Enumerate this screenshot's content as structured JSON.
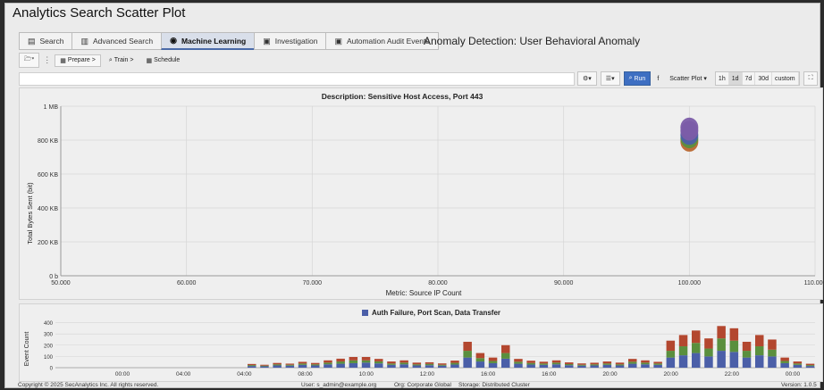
{
  "app": {
    "title": "Analytics Search Scatter Plot"
  },
  "tabs": [
    {
      "label": "Search",
      "icon": "bar-chart-icon",
      "glyph": "▤",
      "active": false
    },
    {
      "label": "Advanced Search",
      "icon": "document-icon",
      "glyph": "▥",
      "active": false
    },
    {
      "label": "Machine Learning",
      "icon": "eye-icon",
      "glyph": "◉",
      "active": true
    },
    {
      "label": "Investigation",
      "icon": "clipboard-icon",
      "glyph": "▣",
      "active": false
    },
    {
      "label": "Automation Audit Events",
      "icon": "gear-doc-icon",
      "glyph": "▣",
      "active": false
    }
  ],
  "header": {
    "anomaly_title": "Anomaly Detection: User Behavioral Anomaly"
  },
  "workflow": {
    "folder_glyph": "🗁▾",
    "sep_glyph": "⋮",
    "steps": [
      "Prepare >",
      "Train >",
      "Schedule"
    ]
  },
  "controls": {
    "settings_glyph": "⚙▾",
    "list_glyph": "☰▾",
    "run_label": "Run",
    "f_label": "f",
    "view_select": "Scatter Plot",
    "ranges": [
      "1h",
      "1d",
      "7d",
      "30d",
      "custom"
    ],
    "selected_range": "1d",
    "expand_glyph": "⛶"
  },
  "colors": {
    "series_blue": "#4b5fa8",
    "series_green": "#5a8f3e",
    "series_red": "#b3472f",
    "point_purple": "#7b5ca8",
    "point_orange": "#b8662e",
    "run_blue": "#3e6fc2"
  },
  "chart_data": [
    {
      "type": "scatter",
      "title": "Description: Sensitive Host Access, Port 443",
      "xlabel": "Metric: Source IP Count",
      "ylabel": "Total Bytes Sent (bit)",
      "xlim": [
        50000,
        110000
      ],
      "ylim": [
        0,
        1000000
      ],
      "x_ticks": [
        50000,
        60000,
        70000,
        80000,
        90000,
        100000,
        110000
      ],
      "x_tick_labels": [
        "50.000",
        "60.000",
        "70.000",
        "80.000",
        "90.000",
        "100.000",
        "110.000"
      ],
      "y_ticks": [
        0,
        200000,
        400000,
        600000,
        800000,
        1000000
      ],
      "y_tick_labels": [
        "0 b",
        "200 KB",
        "400 KB",
        "600 KB",
        "800 KB",
        "1 MB"
      ],
      "grid": true,
      "points": [
        {
          "x": 100000,
          "y": 790000,
          "color": "orange"
        },
        {
          "x": 100000,
          "y": 810000,
          "color": "green"
        },
        {
          "x": 100000,
          "y": 830000,
          "color": "blue"
        },
        {
          "x": 100000,
          "y": 855000,
          "color": "purple"
        },
        {
          "x": 100000,
          "y": 875000,
          "color": "purple"
        }
      ]
    },
    {
      "type": "bar",
      "legend": "Auth Failure, Port Scan, Data Transfer",
      "ylabel": "Event Count",
      "y_ticks": [
        0,
        100,
        200,
        300,
        400
      ],
      "ylim": [
        0,
        420
      ],
      "x_tick_labels": [
        "00:00",
        "04:00",
        "04:00",
        "08:00",
        "10:00",
        "12:00",
        "16:00",
        "16:00",
        "20:00",
        "20:00",
        "22:00",
        "00:00"
      ],
      "stacked": true,
      "bars": [
        [
          15,
          8,
          10
        ],
        [
          12,
          6,
          8
        ],
        [
          20,
          10,
          12
        ],
        [
          18,
          8,
          10
        ],
        [
          25,
          12,
          15
        ],
        [
          20,
          10,
          12
        ],
        [
          30,
          15,
          20
        ],
        [
          35,
          20,
          25
        ],
        [
          40,
          25,
          30
        ],
        [
          45,
          20,
          30
        ],
        [
          38,
          18,
          22
        ],
        [
          25,
          12,
          18
        ],
        [
          30,
          15,
          20
        ],
        [
          20,
          10,
          15
        ],
        [
          22,
          12,
          14
        ],
        [
          18,
          8,
          12
        ],
        [
          28,
          15,
          20
        ],
        [
          90,
          60,
          80
        ],
        [
          55,
          30,
          45
        ],
        [
          40,
          20,
          30
        ],
        [
          80,
          50,
          70
        ],
        [
          35,
          18,
          25
        ],
        [
          28,
          14,
          20
        ],
        [
          25,
          12,
          16
        ],
        [
          30,
          15,
          20
        ],
        [
          22,
          10,
          15
        ],
        [
          18,
          8,
          12
        ],
        [
          20,
          10,
          14
        ],
        [
          25,
          12,
          18
        ],
        [
          20,
          10,
          15
        ],
        [
          35,
          18,
          25
        ],
        [
          30,
          15,
          20
        ],
        [
          25,
          12,
          15
        ],
        [
          90,
          60,
          90
        ],
        [
          110,
          80,
          100
        ],
        [
          130,
          90,
          110
        ],
        [
          100,
          70,
          90
        ],
        [
          150,
          110,
          110
        ],
        [
          140,
          100,
          110
        ],
        [
          90,
          60,
          80
        ],
        [
          110,
          80,
          100
        ],
        [
          100,
          60,
          90
        ],
        [
          40,
          20,
          30
        ],
        [
          25,
          12,
          18
        ],
        [
          15,
          8,
          12
        ]
      ]
    }
  ],
  "footer": {
    "copyright": "Copyright © 2025 SecAnalytics Inc. All rights reserved.",
    "user": "User: s_admin@example.org",
    "org": "Org: Corporate Global",
    "storage": "Storage: Distributed Cluster",
    "version": "Version: 1.0.5"
  }
}
